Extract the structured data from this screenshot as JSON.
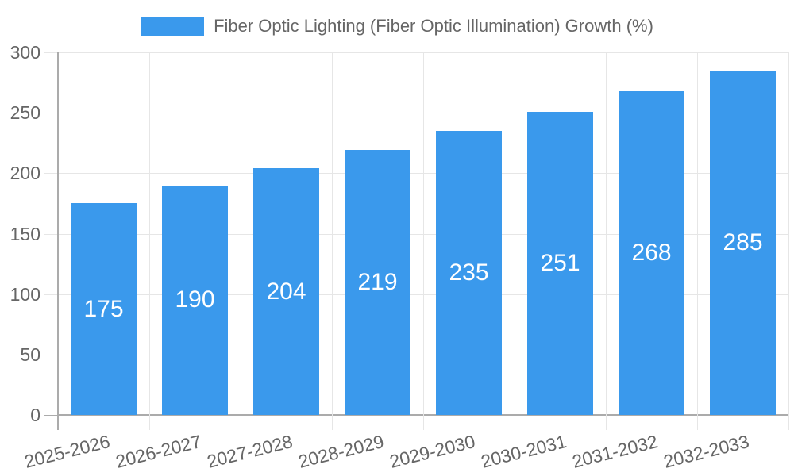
{
  "legend": {
    "label": "Fiber Optic Lighting (Fiber Optic Illumination) Growth (%)",
    "swatch_color": "#3A99EC"
  },
  "chart_data": {
    "type": "bar",
    "title": "Fiber Optic Lighting (Fiber Optic Illumination) Growth (%)",
    "categories": [
      "2025-2026",
      "2026-2027",
      "2027-2028",
      "2028-2029",
      "2029-2030",
      "2030-2031",
      "2031-2032",
      "2032-2033"
    ],
    "values": [
      175,
      190,
      204,
      219,
      235,
      251,
      268,
      285
    ],
    "xlabel": "",
    "ylabel": "",
    "ylim": [
      0,
      300
    ],
    "yticks": [
      0,
      50,
      100,
      150,
      200,
      250,
      300
    ],
    "grid": true,
    "legend_position": "top",
    "value_labels": "inside-center",
    "colors": {
      "bar": "#3A99EC",
      "value_label": "#ffffff",
      "axis_text": "#666666",
      "grid": "#e6e6e6",
      "axis_line": "#ababab"
    }
  }
}
